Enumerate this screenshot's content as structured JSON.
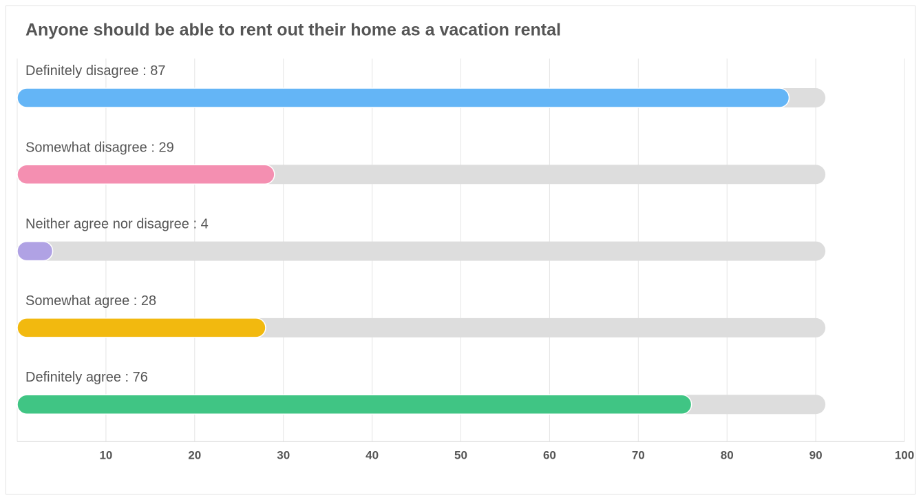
{
  "chart_data": {
    "type": "bar",
    "orientation": "horizontal",
    "title": "Anyone should be able to rent out their home as a vacation rental",
    "categories": [
      "Definitely disagree",
      "Somewhat disagree",
      "Neither agree nor disagree",
      "Somewhat agree",
      "Definitely agree"
    ],
    "label_separator": " : ",
    "values": [
      87,
      29,
      4,
      28,
      76
    ],
    "colors": [
      "#64b5f6",
      "#f48fb1",
      "#b0a2e4",
      "#f2b90f",
      "#40c584"
    ],
    "track_value": 90,
    "track_color": "#dddddd",
    "xlim": [
      0,
      100
    ],
    "xticks": [
      10,
      20,
      30,
      40,
      50,
      60,
      70,
      80,
      90,
      100
    ],
    "grid": true
  }
}
